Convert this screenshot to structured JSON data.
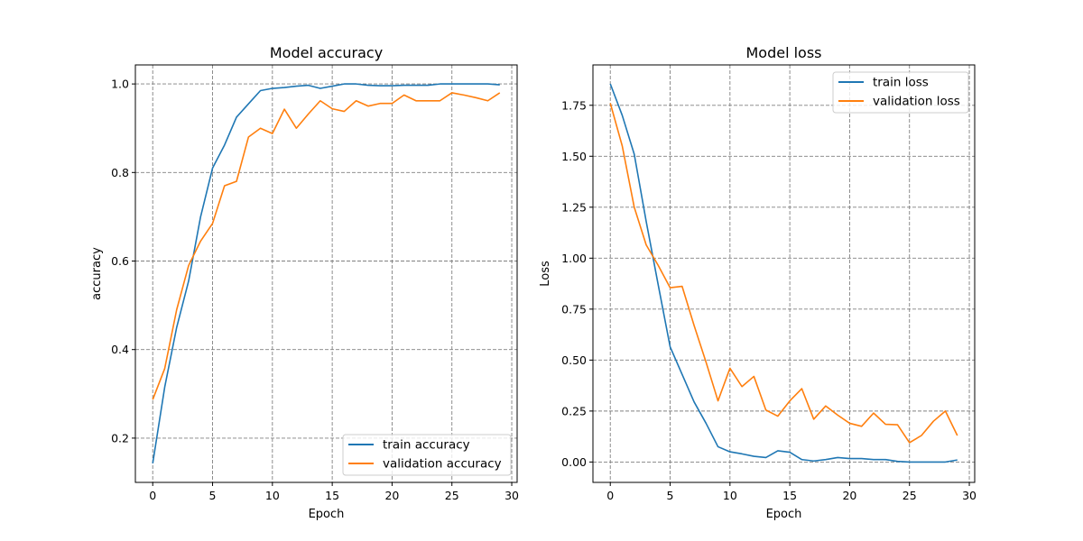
{
  "chart_data": [
    {
      "type": "line",
      "title": "Model accuracy",
      "xlabel": "Epoch",
      "ylabel": "accuracy",
      "xlim": [
        -1.45,
        30.45
      ],
      "ylim": [
        0.1,
        1.043
      ],
      "xticks": [
        0,
        5,
        10,
        15,
        20,
        25,
        30
      ],
      "yticks": [
        0.2,
        0.4,
        0.6,
        0.8,
        1.0
      ],
      "xtick_labels": [
        "0",
        "5",
        "10",
        "15",
        "20",
        "25",
        "30"
      ],
      "ytick_labels": [
        "0.2",
        "0.4",
        "0.6",
        "0.8",
        "1.0"
      ],
      "grid": true,
      "legend_position": "lower-right",
      "x": [
        0,
        1,
        2,
        3,
        4,
        5,
        6,
        7,
        8,
        9,
        10,
        11,
        12,
        13,
        14,
        15,
        16,
        17,
        18,
        19,
        20,
        21,
        22,
        23,
        24,
        25,
        26,
        27,
        28,
        29
      ],
      "series": [
        {
          "name": "train accuracy",
          "color": "#1f77b4",
          "values": [
            0.143,
            0.315,
            0.45,
            0.555,
            0.7,
            0.81,
            0.862,
            0.925,
            0.955,
            0.985,
            0.99,
            0.992,
            0.995,
            0.997,
            0.99,
            0.995,
            1.0,
            1.0,
            0.997,
            0.996,
            0.996,
            0.997,
            0.997,
            0.997,
            1.0,
            1.0,
            1.0,
            1.0,
            1.0,
            0.998
          ]
        },
        {
          "name": "validation accuracy",
          "color": "#ff7f0e",
          "values": [
            0.287,
            0.357,
            0.49,
            0.59,
            0.645,
            0.685,
            0.77,
            0.78,
            0.88,
            0.9,
            0.888,
            0.943,
            0.9,
            0.932,
            0.962,
            0.944,
            0.938,
            0.962,
            0.95,
            0.956,
            0.956,
            0.975,
            0.962,
            0.962,
            0.962,
            0.98,
            0.975,
            0.969,
            0.962,
            0.98
          ]
        }
      ]
    },
    {
      "type": "line",
      "title": "Model loss",
      "xlabel": "Epoch",
      "ylabel": "Loss",
      "xlim": [
        -1.45,
        30.45
      ],
      "ylim": [
        -0.1,
        1.948
      ],
      "xticks": [
        0,
        5,
        10,
        15,
        20,
        25,
        30
      ],
      "yticks": [
        0.0,
        0.25,
        0.5,
        0.75,
        1.0,
        1.25,
        1.5,
        1.75
      ],
      "xtick_labels": [
        "0",
        "5",
        "10",
        "15",
        "20",
        "25",
        "30"
      ],
      "ytick_labels": [
        "0.00",
        "0.25",
        "0.50",
        "0.75",
        "1.00",
        "1.25",
        "1.50",
        "1.75"
      ],
      "grid": true,
      "legend_position": "upper-right",
      "x": [
        0,
        1,
        2,
        3,
        4,
        5,
        6,
        7,
        8,
        9,
        10,
        11,
        12,
        13,
        14,
        15,
        16,
        17,
        18,
        19,
        20,
        21,
        22,
        23,
        24,
        25,
        26,
        27,
        28,
        29
      ],
      "series": [
        {
          "name": "train loss",
          "color": "#1f77b4",
          "values": [
            1.855,
            1.7,
            1.51,
            1.18,
            0.87,
            0.565,
            0.43,
            0.295,
            0.19,
            0.075,
            0.05,
            0.04,
            0.028,
            0.022,
            0.055,
            0.048,
            0.012,
            0.005,
            0.012,
            0.022,
            0.017,
            0.017,
            0.012,
            0.012,
            0.003,
            0.0,
            0.0,
            0.0,
            0.0,
            0.01
          ]
        },
        {
          "name": "validation loss",
          "color": "#ff7f0e",
          "values": [
            1.76,
            1.55,
            1.25,
            1.065,
            0.965,
            0.855,
            0.862,
            0.67,
            0.49,
            0.3,
            0.46,
            0.37,
            0.42,
            0.255,
            0.225,
            0.3,
            0.36,
            0.21,
            0.275,
            0.23,
            0.19,
            0.175,
            0.24,
            0.185,
            0.183,
            0.095,
            0.13,
            0.2,
            0.25,
            0.13
          ]
        }
      ]
    }
  ]
}
